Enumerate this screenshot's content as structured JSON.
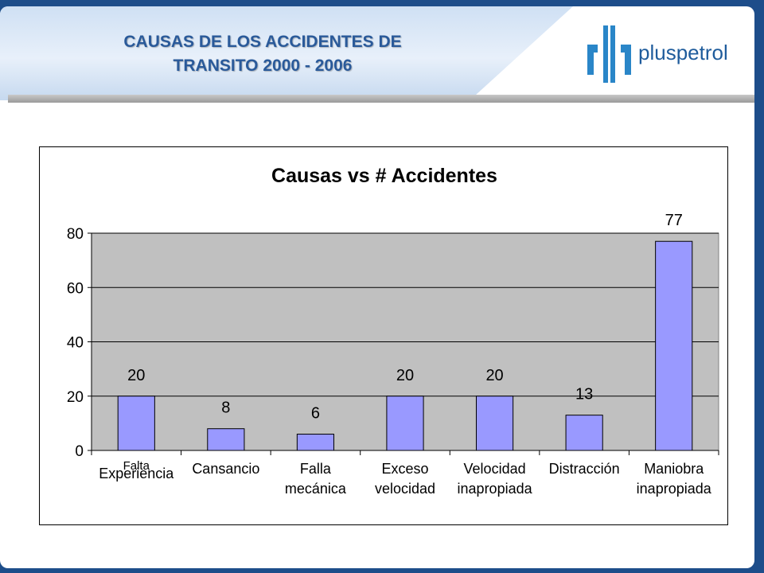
{
  "slide": {
    "title_line1": "CAUSAS DE LOS ACCIDENTES DE",
    "title_line2": "TRANSITO 2000 - 2006",
    "logo_text": "pluspetrol",
    "logo_icon": "pluspetrol-logo-icon"
  },
  "colors": {
    "bar": "#9999ff",
    "plot_bg": "#c0c0c0",
    "title": "#2a5a9a",
    "logo": "#1f5c9c"
  },
  "chart_data": {
    "type": "bar",
    "title": "Causas vs # Accidentes",
    "categories": [
      [
        "Falta",
        "Experiencia"
      ],
      [
        "Cansancio"
      ],
      [
        "Falla",
        "mecánica"
      ],
      [
        "Exceso",
        "velocidad"
      ],
      [
        "Velocidad",
        "inapropiada"
      ],
      [
        "Distracción"
      ],
      [
        "Maniobra",
        "inapropiada"
      ]
    ],
    "values": [
      20,
      8,
      6,
      20,
      20,
      13,
      77
    ],
    "ylim": [
      0,
      80
    ],
    "yticks": [
      0,
      20,
      40,
      60,
      80
    ],
    "grid": true,
    "legend": "none"
  }
}
